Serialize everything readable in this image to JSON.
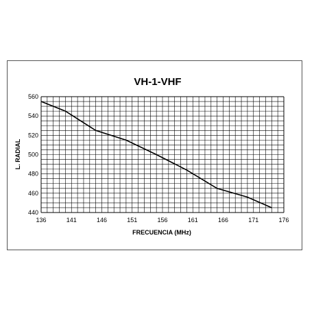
{
  "chart_data": {
    "type": "line",
    "title": "VH-1-VHF",
    "xlabel": "FRECUENCIA  (MHz)",
    "ylabel": "L. RADIAL",
    "xlim": [
      136,
      176
    ],
    "ylim": [
      440,
      560
    ],
    "x_ticks": [
      136,
      141,
      146,
      151,
      156,
      161,
      166,
      171,
      176
    ],
    "y_ticks": [
      440,
      460,
      480,
      500,
      520,
      540,
      560
    ],
    "grid": true,
    "series": [
      {
        "x": [
          136,
          140,
          145,
          150,
          155,
          160,
          165,
          170,
          174
        ],
        "y": [
          555,
          545,
          525,
          515,
          500,
          484,
          465,
          456,
          445
        ]
      }
    ],
    "colors": {
      "line": "#000000",
      "grid": "#000000"
    }
  }
}
